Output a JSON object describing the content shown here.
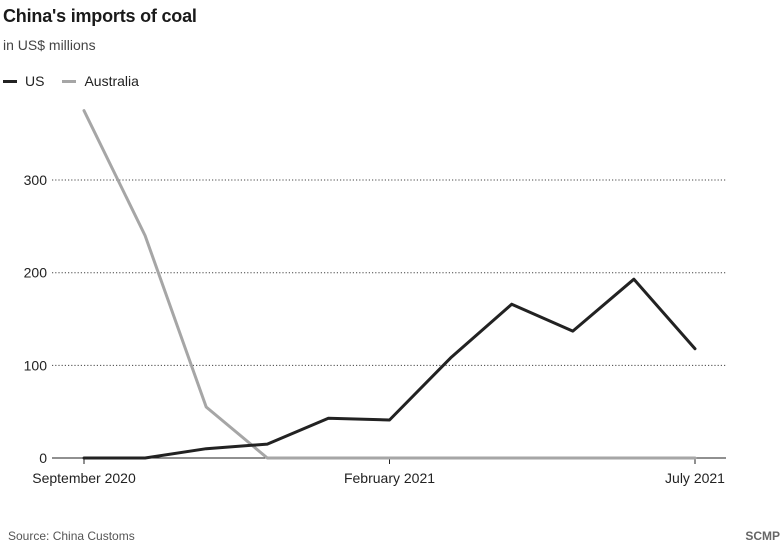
{
  "chart_data": {
    "type": "line",
    "title": "China's imports of coal",
    "subtitle": "in US$ millions",
    "x": [
      "Sep 2020",
      "Oct 2020",
      "Nov 2020",
      "Dec 2020",
      "Jan 2021",
      "Feb 2021",
      "Mar 2021",
      "Apr 2021",
      "May 2021",
      "Jun 2021",
      "Jul 2021"
    ],
    "x_tick_labels": [
      {
        "index": 0,
        "label": "September 2020"
      },
      {
        "index": 5,
        "label": "February 2021"
      },
      {
        "index": 10,
        "label": "July 2021"
      }
    ],
    "y_ticks": [
      0,
      100,
      200,
      300
    ],
    "ylim": [
      0,
      380
    ],
    "grid": "horizontal dotted",
    "legend_placement": "top-left",
    "series": [
      {
        "name": "US",
        "color": "#222222",
        "values": [
          0,
          0,
          10,
          15,
          43,
          41,
          108,
          166,
          137,
          193,
          118
        ]
      },
      {
        "name": "Australia",
        "color": "#a6a6a6",
        "values": [
          375,
          240,
          55,
          0,
          0,
          0,
          0,
          0,
          0,
          0,
          0
        ]
      }
    ]
  },
  "source": "Source: China Customs",
  "brand": "SCMP"
}
